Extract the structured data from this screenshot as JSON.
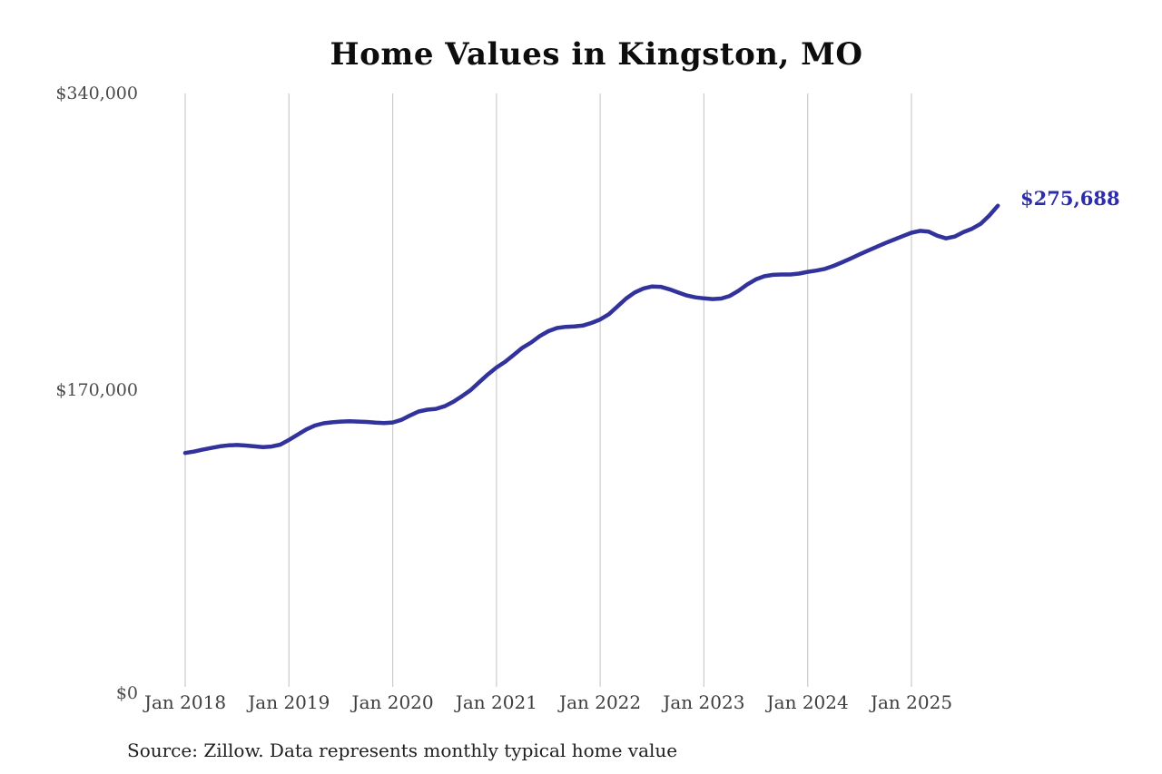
{
  "title": "Home Values in Kingston, MO",
  "source_note": "Source: Zillow. Data represents monthly typical home value",
  "end_label": "$275,688",
  "colors": {
    "line": "#32329d",
    "end_label": "#2d2dab",
    "grid": "#cccccc",
    "axis_text": "#4a4a4a",
    "title_text": "#0d0d0d"
  },
  "chart_data": {
    "type": "line",
    "title": "Home Values in Kingston, MO",
    "xlabel": "",
    "ylabel": "",
    "ylim": [
      0,
      340000
    ],
    "y_ticks": [
      0,
      170000,
      340000
    ],
    "y_tick_labels": [
      "$0",
      "$170,000",
      "$340,000"
    ],
    "x_tick_labels": [
      "Jan 2018",
      "Jan 2019",
      "Jan 2020",
      "Jan 2021",
      "Jan 2022",
      "Jan 2023",
      "Jan 2024",
      "Jan 2025"
    ],
    "grid": "vertical-gridlines-only",
    "legend": "none",
    "interval": "monthly",
    "x_start": "2018-01",
    "x_end": "2025-11",
    "end_value": 275688,
    "end_value_label": "$275,688",
    "series": [
      {
        "name": "Typical home value",
        "values": [
          134000,
          134800,
          135900,
          136900,
          137800,
          138400,
          138600,
          138300,
          137800,
          137400,
          137700,
          138800,
          141500,
          144500,
          147500,
          149800,
          151000,
          151600,
          152000,
          152200,
          152000,
          151800,
          151400,
          151200,
          151500,
          153000,
          155500,
          157800,
          158800,
          159300,
          160800,
          163300,
          166500,
          170000,
          174500,
          179000,
          183000,
          186200,
          190200,
          194300,
          197300,
          201000,
          203800,
          205600,
          206300,
          206500,
          207000,
          208500,
          210500,
          213500,
          218000,
          222500,
          226000,
          228300,
          229400,
          229200,
          227800,
          226000,
          224300,
          223200,
          222600,
          222200,
          222500,
          224000,
          227000,
          230500,
          233500,
          235300,
          236100,
          236300,
          236300,
          236800,
          237800,
          238500,
          239500,
          241200,
          243300,
          245500,
          247800,
          250000,
          252200,
          254300,
          256300,
          258300,
          260200,
          261300,
          260800,
          258500,
          257000,
          258000,
          260500,
          262500,
          265300,
          270000,
          275688
        ]
      }
    ]
  }
}
